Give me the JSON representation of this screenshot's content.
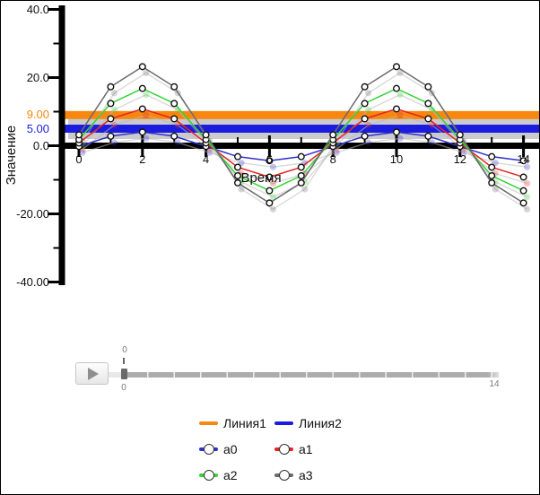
{
  "chart": {
    "y_title": "Значение",
    "x_title": "Время",
    "y_major": [
      {
        "v": 40,
        "label": "40.0"
      },
      {
        "v": 20,
        "label": "20.0"
      },
      {
        "v": 0,
        "label": "0.0"
      },
      {
        "v": -20,
        "label": "-20.00"
      },
      {
        "v": -40,
        "label": "-40.00"
      }
    ],
    "y_minor": [
      30,
      10,
      -10,
      -30
    ],
    "x_major": [
      {
        "v": 0,
        "label": "0"
      },
      {
        "v": 2,
        "label": "2"
      },
      {
        "v": 4,
        "label": "4"
      },
      {
        "v": 6,
        "label": "6"
      },
      {
        "v": 8,
        "label": "8"
      },
      {
        "v": 10,
        "label": "10"
      },
      {
        "v": 12,
        "label": "12"
      },
      {
        "v": 14,
        "label": "14"
      }
    ],
    "x_minor": [
      1,
      3,
      5,
      7,
      9,
      11,
      13
    ],
    "axis_color": "#000000",
    "shadow_color": "#cbcbcb"
  },
  "chart_data": {
    "type": "line",
    "title": "",
    "xlabel": "Время",
    "ylabel": "Значение",
    "xlim": [
      0,
      14
    ],
    "ylim": [
      -40,
      40
    ],
    "grid": false,
    "legend_position": "bottom",
    "x": [
      0,
      1,
      2,
      3,
      4,
      5,
      6,
      7,
      8,
      9,
      10,
      11,
      12,
      13,
      14
    ],
    "series": [
      {
        "name": "a0",
        "color": "#3030cc",
        "values": [
          -0.2,
          2.8,
          4.0,
          2.8,
          -0.2,
          -3.2,
          -4.4,
          -3.2,
          -0.2,
          2.8,
          4.0,
          2.8,
          -0.2,
          -3.2,
          -4.4
        ]
      },
      {
        "name": "a1",
        "color": "#e62222",
        "values": [
          0.8,
          7.9,
          10.8,
          7.9,
          0.8,
          -6.3,
          -9.2,
          -6.3,
          0.8,
          7.9,
          10.8,
          7.9,
          0.8,
          -6.3,
          -9.2
        ]
      },
      {
        "name": "a2",
        "color": "#33d433",
        "values": [
          1.8,
          12.4,
          16.8,
          12.4,
          1.8,
          -8.8,
          -13.2,
          -8.8,
          1.8,
          12.4,
          16.8,
          12.4,
          1.8,
          -8.8,
          -13.2
        ]
      },
      {
        "name": "a3",
        "color": "#6a6a6a",
        "values": [
          3.2,
          17.3,
          23.2,
          17.3,
          3.2,
          -10.9,
          -16.8,
          -10.9,
          3.2,
          17.3,
          23.2,
          17.3,
          3.2,
          -10.9,
          -16.8
        ]
      }
    ],
    "ref_lines": [
      {
        "name": "Линия1",
        "value": 9,
        "axis_label": "9.00",
        "color": "#f8870f"
      },
      {
        "name": "Линия2",
        "value": 5,
        "axis_label": "5.00",
        "color": "#1c1cdf"
      }
    ]
  },
  "player": {
    "play_icon": "play-triangle",
    "current_label": "0",
    "min_label": "0",
    "max_label": "14"
  },
  "legend": {
    "items": [
      {
        "label": "Линия1",
        "color": "#f8870f",
        "marker": false,
        "row": 0,
        "col": 0
      },
      {
        "label": "Линия2",
        "color": "#1c1cdf",
        "marker": false,
        "row": 0,
        "col": 1
      },
      {
        "label": "a0",
        "color": "#3030cc",
        "marker": true,
        "row": 1,
        "col": 0
      },
      {
        "label": "a1",
        "color": "#e62222",
        "marker": true,
        "row": 1,
        "col": 1
      },
      {
        "label": "a2",
        "color": "#33d433",
        "marker": true,
        "row": 2,
        "col": 0
      },
      {
        "label": "a3",
        "color": "#6a6a6a",
        "marker": true,
        "row": 2,
        "col": 1
      }
    ]
  }
}
